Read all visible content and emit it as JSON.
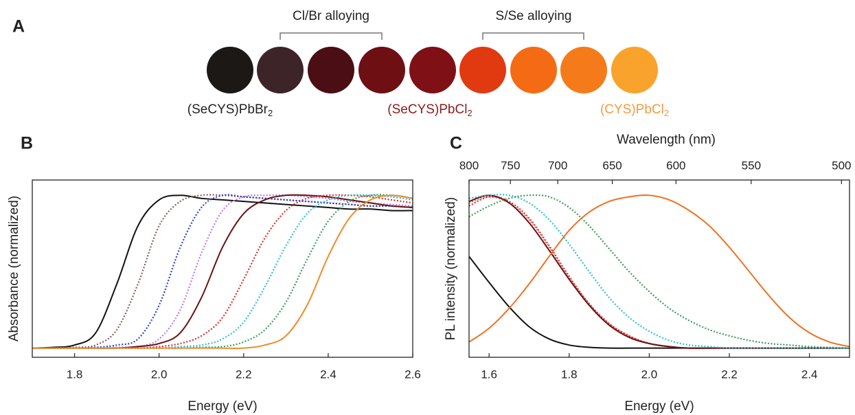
{
  "panel_a": {
    "label": "A",
    "brackets": [
      "Cl/Br alloying",
      "S/Se alloying"
    ],
    "compound_labels": [
      {
        "text": "(SeCYS)PbBr",
        "sub": "2"
      },
      {
        "text": "(SeCYS)PbCl",
        "sub": "2"
      },
      {
        "text": "(CYS)PbCl",
        "sub": "2"
      }
    ]
  },
  "chart_data": [
    {
      "type": "line",
      "panel_label": "B",
      "xlabel": "Energy (eV)",
      "ylabel": "Absorbance (normalized)",
      "xlim": [
        1.7,
        2.6
      ],
      "ylim": [
        -0.06,
        1.1
      ],
      "xticks": [
        1.8,
        {
          "value": 2,
          "label": "2.0"
        },
        2.2,
        2.4,
        2.6
      ],
      "x": [
        1.7,
        1.75,
        1.8,
        1.85,
        1.9,
        1.95,
        2.0,
        2.05,
        2.1,
        2.15,
        2.2,
        2.25,
        2.3,
        2.35,
        2.4,
        2.45,
        2.5,
        2.55,
        2.6
      ],
      "series": [
        {
          "color": "#111111",
          "style": "solid",
          "values": [
            0,
            0.005,
            0.02,
            0.1,
            0.42,
            0.8,
            0.97,
            1.0,
            0.98,
            0.97,
            0.96,
            0.95,
            0.94,
            0.93,
            0.92,
            0.91,
            0.91,
            0.9,
            0.9
          ]
        },
        {
          "color": "#8a5a5a",
          "style": "dotted",
          "values": [
            0,
            0,
            0.005,
            0.02,
            0.12,
            0.42,
            0.8,
            0.96,
            1.0,
            1.0,
            0.99,
            0.98,
            0.97,
            0.96,
            0.95,
            0.94,
            0.93,
            0.93,
            0.92
          ]
        },
        {
          "color": "#2b3fd6",
          "style": "dotted",
          "values": [
            0,
            0,
            0,
            0.005,
            0.02,
            0.06,
            0.28,
            0.66,
            0.92,
            1.0,
            0.99,
            0.98,
            0.97,
            0.96,
            0.95,
            0.94,
            0.93,
            0.93,
            0.92
          ]
        },
        {
          "color": "#b57be0",
          "style": "dotted",
          "values": [
            0,
            0,
            0,
            0,
            0.005,
            0.01,
            0.06,
            0.25,
            0.62,
            0.9,
            0.99,
            1.0,
            1.0,
            0.99,
            0.98,
            0.96,
            0.95,
            0.94,
            0.93
          ]
        },
        {
          "color": "#6b1010",
          "style": "solid",
          "values": [
            0,
            0,
            0,
            0,
            0,
            0.01,
            0.03,
            0.1,
            0.33,
            0.66,
            0.88,
            0.97,
            1.0,
            1.0,
            0.99,
            0.97,
            0.95,
            0.93,
            0.92
          ]
        },
        {
          "color": "#e02a2a",
          "style": "dotted",
          "values": [
            0,
            0,
            0,
            0,
            0,
            0,
            0.01,
            0.03,
            0.08,
            0.2,
            0.45,
            0.72,
            0.9,
            0.98,
            1.0,
            1.0,
            0.99,
            0.97,
            0.95
          ]
        },
        {
          "color": "#27c2d0",
          "style": "dotted",
          "values": [
            0,
            0,
            0,
            0,
            0,
            0,
            0,
            0.01,
            0.02,
            0.06,
            0.17,
            0.4,
            0.67,
            0.88,
            0.97,
            1.0,
            1.0,
            0.99,
            0.97
          ]
        },
        {
          "color": "#3a9a5a",
          "style": "dotted",
          "values": [
            0,
            0,
            0,
            0,
            0,
            0,
            0,
            0,
            0.005,
            0.01,
            0.04,
            0.12,
            0.3,
            0.58,
            0.83,
            0.96,
            1.0,
            1.0,
            0.98
          ]
        },
        {
          "color": "#f08a2a",
          "style": "solid",
          "values": [
            0,
            0,
            0,
            0,
            0,
            0,
            0,
            0,
            0,
            0,
            0,
            0.02,
            0.08,
            0.28,
            0.6,
            0.85,
            0.97,
            1.0,
            0.98
          ]
        }
      ]
    },
    {
      "type": "line",
      "panel_label": "C",
      "xlabel": "Energy (eV)",
      "ylabel": "PL intensity (normalized)",
      "x2label": "Wavelength (nm)",
      "x2_scale": "reciprocal",
      "xlim": [
        1.55,
        2.5
      ],
      "ylim": [
        -0.06,
        1.1
      ],
      "x2lim": [
        800,
        496
      ],
      "xticks": [
        1.6,
        1.8,
        {
          "value": 2,
          "label": "2.0"
        },
        2.2,
        2.4
      ],
      "x2ticks": [
        800,
        750,
        700,
        650,
        600,
        550,
        500
      ],
      "x": [
        1.55,
        1.6,
        1.65,
        1.7,
        1.75,
        1.8,
        1.85,
        1.9,
        1.95,
        2.0,
        2.05,
        2.1,
        2.15,
        2.2,
        2.25,
        2.3,
        2.35,
        2.4,
        2.45,
        2.5
      ],
      "series": [
        {
          "color": "#111111",
          "style": "solid",
          "values": [
            0.6,
            0.43,
            0.27,
            0.14,
            0.06,
            0.02,
            0.005,
            0,
            0,
            0,
            0,
            0,
            0,
            0,
            0,
            0,
            0,
            0,
            0,
            0
          ]
        },
        {
          "color": "#d08080",
          "style": "dotted",
          "values": [
            0.95,
            0.99,
            0.95,
            0.84,
            0.66,
            0.46,
            0.29,
            0.16,
            0.08,
            0.03,
            0.01,
            0,
            0,
            0,
            0,
            0,
            0,
            0,
            0,
            0
          ]
        },
        {
          "color": "#e02a2a",
          "style": "dotted",
          "values": [
            0.93,
            0.99,
            0.96,
            0.85,
            0.67,
            0.47,
            0.29,
            0.16,
            0.08,
            0.03,
            0.01,
            0,
            0,
            0,
            0,
            0,
            0,
            0,
            0,
            0
          ]
        },
        {
          "color": "#6b1010",
          "style": "solid",
          "values": [
            0.96,
            1.0,
            0.95,
            0.82,
            0.64,
            0.45,
            0.28,
            0.15,
            0.07,
            0.03,
            0.01,
            0,
            0,
            0,
            0,
            0,
            0,
            0,
            0,
            0
          ]
        },
        {
          "color": "#27c2d0",
          "style": "dotted",
          "values": [
            0.98,
            1.0,
            1.0,
            0.95,
            0.84,
            0.68,
            0.5,
            0.33,
            0.2,
            0.11,
            0.05,
            0.02,
            0.01,
            0,
            0,
            0,
            0,
            0,
            0,
            0
          ]
        },
        {
          "color": "#3a9a5a",
          "style": "dotted",
          "values": [
            0.86,
            0.93,
            0.98,
            1.0,
            0.99,
            0.92,
            0.8,
            0.65,
            0.5,
            0.37,
            0.26,
            0.18,
            0.12,
            0.08,
            0.05,
            0.03,
            0.02,
            0.01,
            0.005,
            0
          ]
        },
        {
          "color": "#f07020",
          "style": "solid",
          "values": [
            0.04,
            0.13,
            0.26,
            0.42,
            0.6,
            0.77,
            0.89,
            0.96,
            0.99,
            1.0,
            0.97,
            0.9,
            0.8,
            0.66,
            0.5,
            0.34,
            0.2,
            0.1,
            0.04,
            0.01
          ]
        }
      ]
    }
  ]
}
